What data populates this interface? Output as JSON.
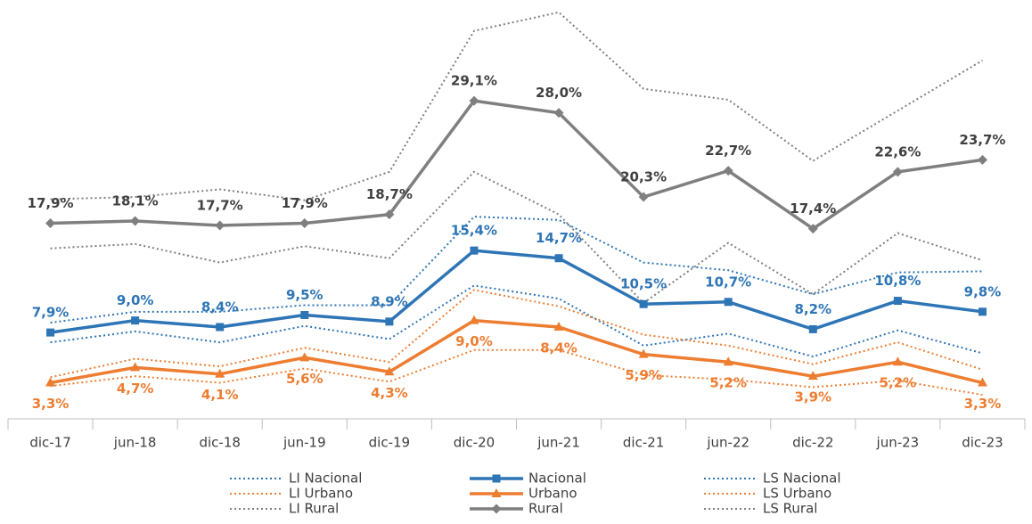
{
  "chart_data": {
    "type": "line",
    "categories": [
      "dic-17",
      "jun-18",
      "dic-18",
      "jun-19",
      "dic-19",
      "dic-20",
      "jun-21",
      "dic-21",
      "jun-22",
      "dic-22",
      "jun-23",
      "dic-23"
    ],
    "ylim": [
      0,
      38
    ],
    "legend": "bottom",
    "series": [
      {
        "name": "LI Nacional",
        "color": "#2e75b6",
        "style": "dotted",
        "values": [
          7.0,
          8.0,
          7.0,
          8.5,
          7.3,
          12.2,
          11.0,
          6.7,
          7.8,
          5.7,
          8.1,
          6.0
        ]
      },
      {
        "name": "Nacional",
        "color": "#2e75b6",
        "style": "solid",
        "marker": "square",
        "label_position": "above",
        "values": [
          7.9,
          9.0,
          8.4,
          9.5,
          8.9,
          15.4,
          14.7,
          10.5,
          10.7,
          8.2,
          10.8,
          9.8
        ],
        "value_labels": [
          "7,9%",
          "9,0%",
          "8,4%",
          "9,5%",
          "8,9%",
          "15,4%",
          "14,7%",
          "10,5%",
          "10,7%",
          "8,2%",
          "10,8%",
          "9,8%"
        ]
      },
      {
        "name": "LS Nacional",
        "color": "#2e75b6",
        "style": "dotted",
        "values": [
          8.8,
          9.8,
          9.8,
          10.4,
          10.4,
          18.5,
          18.2,
          14.3,
          13.6,
          11.4,
          13.4,
          13.5
        ]
      },
      {
        "name": "LI Urbano",
        "color": "#ed7d31",
        "style": "dotted",
        "values": [
          3.0,
          3.9,
          3.3,
          4.6,
          3.4,
          6.3,
          6.3,
          4.0,
          3.6,
          2.9,
          3.5,
          2.2
        ]
      },
      {
        "name": "Urbano",
        "color": "#ed7d31",
        "style": "solid",
        "marker": "triangle",
        "label_position": "below",
        "values": [
          3.3,
          4.7,
          4.1,
          5.6,
          4.3,
          9.0,
          8.4,
          5.9,
          5.2,
          3.9,
          5.2,
          3.3
        ],
        "value_labels": [
          "3,3%",
          "4,7%",
          "4,1%",
          "5,6%",
          "4,3%",
          "9,0%",
          "8,4%",
          "5,9%",
          "5,2%",
          "3,9%",
          "5,2%",
          "3,3%"
        ]
      },
      {
        "name": "LS Urbano",
        "color": "#ed7d31",
        "style": "dotted",
        "values": [
          3.8,
          5.5,
          4.8,
          6.5,
          5.2,
          11.8,
          10.3,
          7.7,
          6.7,
          5.0,
          7.0,
          4.5
        ]
      },
      {
        "name": "LI Rural",
        "color": "#7f7f7f",
        "style": "dotted",
        "values": [
          15.6,
          16.0,
          14.3,
          15.8,
          14.7,
          22.6,
          18.7,
          10.6,
          16.1,
          11.4,
          17.0,
          14.5
        ]
      },
      {
        "name": "Rural",
        "color": "#7f7f7f",
        "style": "solid",
        "marker": "diamond",
        "label_position": "above",
        "values": [
          17.9,
          18.1,
          17.7,
          17.9,
          18.7,
          29.1,
          28.0,
          20.3,
          22.7,
          17.4,
          22.6,
          23.7
        ],
        "value_labels": [
          "17,9%",
          "18,1%",
          "17,7%",
          "17,9%",
          "18,7%",
          "29,1%",
          "28,0%",
          "20,3%",
          "22,7%",
          "17,4%",
          "22,6%",
          "23,7%"
        ]
      },
      {
        "name": "LS Rural",
        "color": "#7f7f7f",
        "style": "dotted",
        "values": [
          20.1,
          20.3,
          21.0,
          20.0,
          22.6,
          35.5,
          37.2,
          30.2,
          29.2,
          23.6,
          28.2,
          32.8
        ]
      }
    ]
  }
}
